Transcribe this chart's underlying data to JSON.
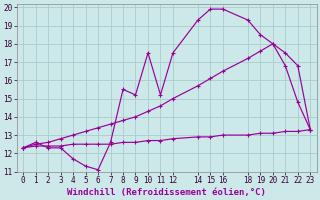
{
  "xlabel": "Windchill (Refroidissement éolien,°C)",
  "bg_color": "#cce8e8",
  "line_color": "#990099",
  "grid_color": "#aacccc",
  "xlim": [
    -0.5,
    23.5
  ],
  "ylim": [
    11,
    20.2
  ],
  "yticks": [
    11,
    12,
    13,
    14,
    15,
    16,
    17,
    18,
    19,
    20
  ],
  "xticks": [
    0,
    1,
    2,
    3,
    4,
    5,
    6,
    7,
    8,
    9,
    10,
    11,
    12,
    14,
    15,
    16,
    18,
    19,
    20,
    21,
    22,
    23
  ],
  "tick_fontsize": 5.5,
  "label_fontsize": 6.5,
  "line1_x": [
    0,
    1,
    2,
    3,
    4,
    5,
    6,
    7,
    8,
    9,
    10,
    11,
    12,
    14,
    15,
    16,
    18,
    19,
    20,
    21,
    22,
    23
  ],
  "line1_y": [
    12.3,
    12.6,
    12.3,
    12.3,
    11.7,
    11.3,
    11.1,
    12.6,
    15.5,
    15.2,
    17.5,
    15.2,
    17.5,
    19.3,
    19.9,
    19.9,
    19.3,
    18.5,
    18.0,
    16.8,
    14.8,
    13.3
  ],
  "line2_x": [
    0,
    1,
    2,
    3,
    4,
    5,
    6,
    7,
    8,
    9,
    10,
    11,
    12,
    14,
    15,
    16,
    18,
    19,
    20,
    21,
    22,
    23
  ],
  "line2_y": [
    12.3,
    12.5,
    12.6,
    12.8,
    13.0,
    13.2,
    13.4,
    13.6,
    13.8,
    14.0,
    14.3,
    14.6,
    15.0,
    15.7,
    16.1,
    16.5,
    17.2,
    17.6,
    18.0,
    17.5,
    16.8,
    13.3
  ],
  "line3_x": [
    0,
    1,
    2,
    3,
    4,
    5,
    6,
    7,
    8,
    9,
    10,
    11,
    12,
    14,
    15,
    16,
    18,
    19,
    20,
    21,
    22,
    23
  ],
  "line3_y": [
    12.3,
    12.4,
    12.4,
    12.4,
    12.5,
    12.5,
    12.5,
    12.5,
    12.6,
    12.6,
    12.7,
    12.7,
    12.8,
    12.9,
    12.9,
    13.0,
    13.0,
    13.1,
    13.1,
    13.2,
    13.2,
    13.3
  ]
}
